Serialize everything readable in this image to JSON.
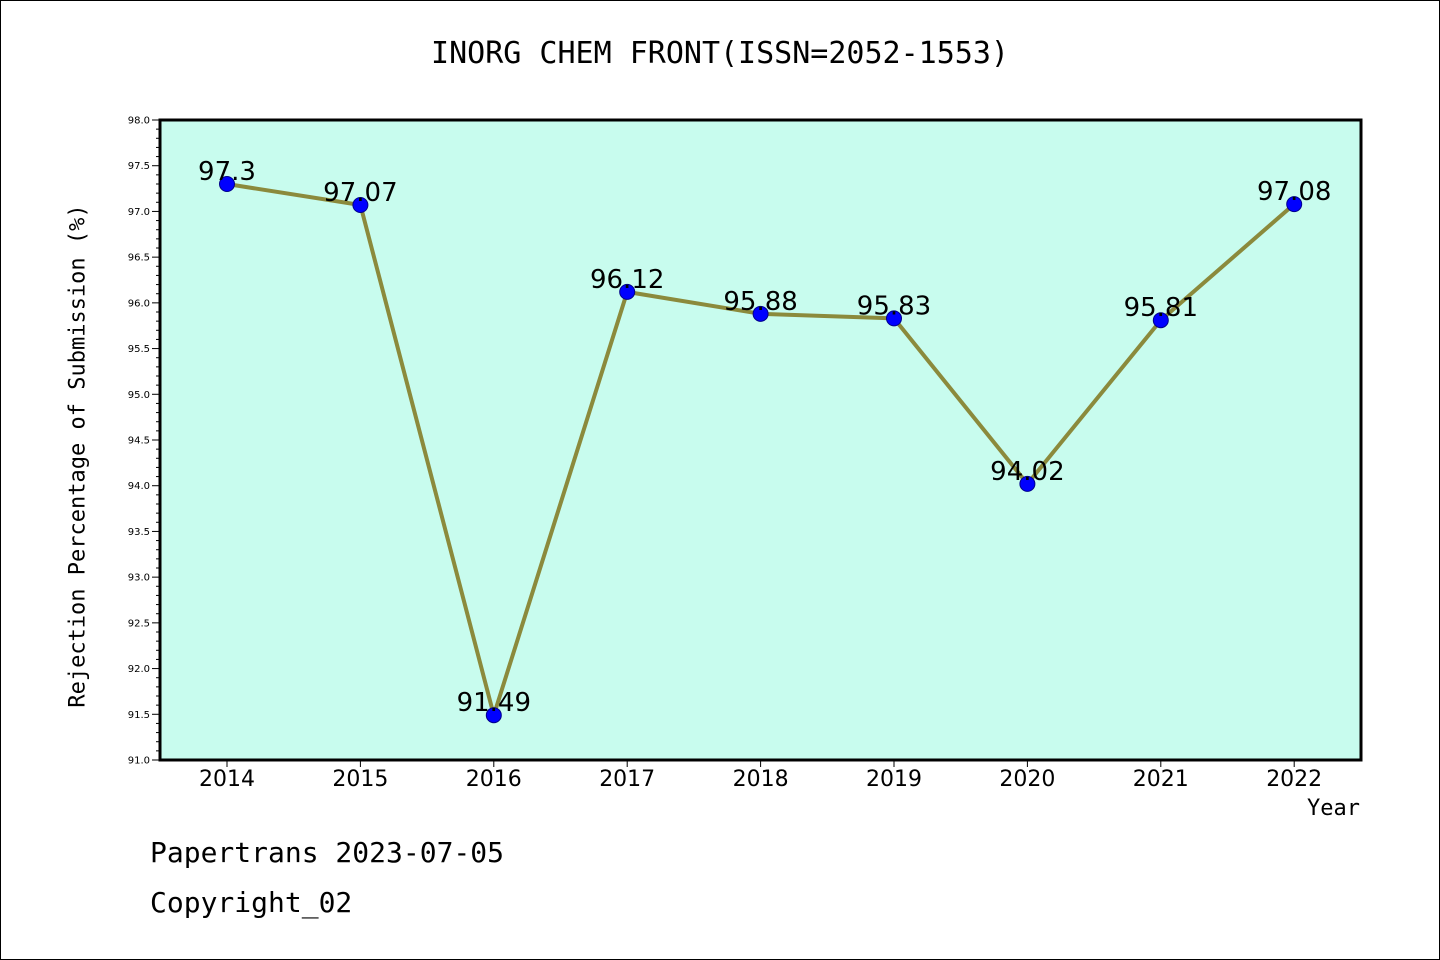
{
  "header": {
    "title": "INORG CHEM FRONT(ISSN=2052-1553)"
  },
  "footer": {
    "line1": "Papertrans 2023-07-05",
    "line2": "Copyright_02"
  },
  "colors": {
    "plot_background": "#c8fcee",
    "line": "#8b8a3c",
    "marker": "#0000ff"
  },
  "chart_data": {
    "type": "line",
    "title": "INORG CHEM FRONT(ISSN=2052-1553)",
    "xlabel": "Year",
    "ylabel": "Rejection Percentage of Submission (%)",
    "categories": [
      "2014",
      "2015",
      "2016",
      "2017",
      "2018",
      "2019",
      "2020",
      "2021",
      "2022"
    ],
    "values": [
      97.3,
      97.07,
      91.49,
      96.12,
      95.88,
      95.83,
      94.02,
      95.81,
      97.08
    ],
    "data_labels": [
      "97.3",
      "97.07",
      "91.49",
      "96.12",
      "95.88",
      "95.83",
      "94.02",
      "95.81",
      "97.08"
    ],
    "ylim": [
      91.0,
      98.0
    ],
    "yticks": [
      "91.0",
      "91.5",
      "92.0",
      "92.5",
      "93.0",
      "93.5",
      "94.0",
      "94.5",
      "95.0",
      "95.5",
      "96.0",
      "96.5",
      "97.0",
      "97.5",
      "98.0"
    ],
    "grid": false,
    "legend": "none"
  }
}
